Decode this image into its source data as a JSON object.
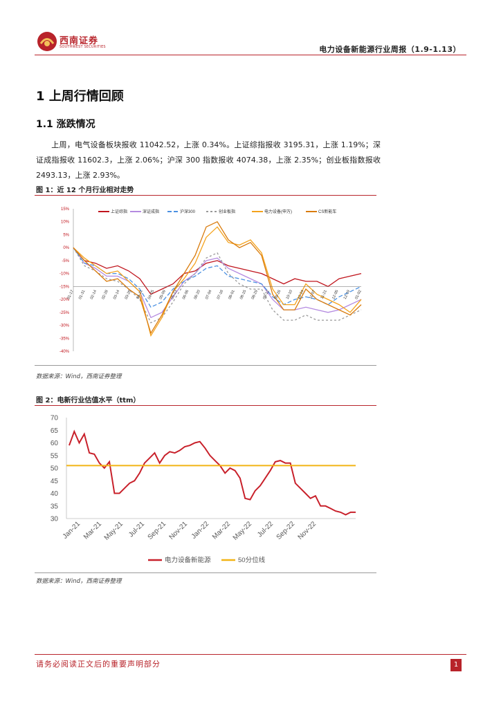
{
  "header": {
    "logo_name": "西南证券",
    "logo_sub": "SOUTHWEST SECURITIES",
    "report_title": "电力设备新能源行业周报（1.9-1.13）",
    "brand_color": "#b8232a"
  },
  "section": {
    "h1": "1 上周行情回顾",
    "h2": "1.1 涨跌情况",
    "paragraph": "上周，电气设备板块报收 11042.52，上涨 0.34%。上证综指报收 3195.31，上涨 1.19%；深证成指报收 11602.3，上涨 2.06%；沪深 300 指数报收 4074.38，上涨 2.35%；创业板指数报收 2493.13，上涨 2.93%。"
  },
  "figure1": {
    "title": "图 1：近 12 个月行业相对走势",
    "source": "数据来源：Wind，西南证券整理"
  },
  "figure2": {
    "title": "图 2：电新行业估值水平（ttm）",
    "source": "数据来源：Wind，西南证券整理"
  },
  "footer": {
    "disclaimer": "请务必阅读正文后的重要声明部分",
    "page": "1"
  },
  "chart_data": [
    {
      "type": "line",
      "title": "",
      "ylim": [
        -40,
        15
      ],
      "y_ticks": [
        "15%",
        "10%",
        "5%",
        "0%",
        "-5%",
        "-10%",
        "-15%",
        "-20%",
        "-25%",
        "-30%",
        "-35%",
        "-40%"
      ],
      "x_ticks": [
        "01-17",
        "01-31",
        "02-14",
        "02-28",
        "03-14",
        "03-28",
        "04-11",
        "04-25",
        "05-09",
        "05-23",
        "06-06",
        "06-20",
        "07-04",
        "07-18",
        "08-01",
        "08-15",
        "08-29",
        "09-12",
        "09-26",
        "10-10",
        "10-24",
        "11-07",
        "11-21",
        "12-05",
        "12-19",
        "01-02"
      ],
      "legend_position": "top",
      "series": [
        {
          "name": "上证综指",
          "color": "#c0141c",
          "dash": "",
          "values": [
            0,
            -5,
            -6,
            -8,
            -7,
            -9,
            -12,
            -18,
            -16,
            -14,
            -10,
            -9,
            -6,
            -5,
            -7,
            -8,
            -9,
            -10,
            -12,
            -14,
            -12,
            -13,
            -13,
            -15,
            -12,
            -11,
            -10
          ]
        },
        {
          "name": "深证成指",
          "color": "#b48ae0",
          "dash": "",
          "values": [
            0,
            -6,
            -8,
            -11,
            -11,
            -13,
            -17,
            -27,
            -25,
            -19,
            -13,
            -10,
            -5,
            -4,
            -8,
            -10,
            -12,
            -14,
            -20,
            -24,
            -24,
            -23,
            -24,
            -25,
            -24,
            -22,
            -20
          ]
        },
        {
          "name": "沪深300",
          "color": "#4a90e2",
          "dash": "6,3",
          "values": [
            0,
            -6,
            -7,
            -10,
            -10,
            -12,
            -16,
            -23,
            -21,
            -16,
            -13,
            -11,
            -8,
            -7,
            -11,
            -12,
            -13,
            -14,
            -19,
            -22,
            -20,
            -19,
            -20,
            -22,
            -19,
            -17,
            -15
          ]
        },
        {
          "name": "创业板指",
          "color": "#999999",
          "dash": "3,3",
          "values": [
            0,
            -7,
            -9,
            -12,
            -13,
            -16,
            -20,
            -29,
            -27,
            -21,
            -14,
            -10,
            -4,
            -2,
            -10,
            -14,
            -16,
            -16,
            -24,
            -28,
            -28,
            -26,
            -28,
            -28,
            -28,
            -26,
            -24
          ]
        },
        {
          "name": "电力设备(申万)",
          "color": "#f4a21b",
          "dash": "",
          "values": [
            0,
            -4,
            -7,
            -10,
            -9,
            -13,
            -17,
            -34,
            -27,
            -17,
            -12,
            -6,
            4,
            8,
            2,
            1,
            3,
            -2,
            -16,
            -22,
            -22,
            -14,
            -18,
            -20,
            -22,
            -25,
            -20
          ]
        },
        {
          "name": "CS新能车",
          "color": "#d97b0c",
          "dash": "",
          "values": [
            0,
            -5,
            -9,
            -13,
            -12,
            -16,
            -19,
            -33,
            -26,
            -17,
            -10,
            -3,
            8,
            10,
            3,
            0,
            2,
            -3,
            -18,
            -24,
            -24,
            -16,
            -20,
            -22,
            -24,
            -26,
            -22
          ]
        }
      ]
    },
    {
      "type": "line",
      "title": "",
      "ylim": [
        30,
        70
      ],
      "y_ticks": [
        30,
        35,
        40,
        45,
        50,
        55,
        60,
        65,
        70
      ],
      "x_ticks": [
        "Jan-21",
        "Mar-21",
        "May-21",
        "Jul-21",
        "Sep-21",
        "Nov-21",
        "Jan-22",
        "Mar-22",
        "May-22",
        "Jul-22",
        "Sep-22",
        "Nov-22"
      ],
      "legend_position": "bottom",
      "series": [
        {
          "name": "电力设备新能源",
          "color": "#c8202a",
          "values": [
            59,
            64.5,
            60,
            63.5,
            56,
            55.5,
            52,
            50,
            52.5,
            40,
            40,
            42,
            44,
            45,
            48,
            52,
            54,
            56,
            52,
            55,
            56.5,
            56,
            57,
            58.5,
            59,
            60,
            60.5,
            58,
            55,
            53,
            51,
            48,
            50,
            49,
            46,
            38,
            37.5,
            41,
            43,
            46,
            49,
            52.5,
            53,
            52,
            52,
            44,
            42,
            40,
            38,
            39,
            35,
            35,
            34,
            33,
            32.5,
            31.5,
            32.5,
            32.5
          ]
        },
        {
          "name": "50分位线",
          "color": "#f2b414",
          "values": [
            51,
            51
          ]
        }
      ]
    }
  ]
}
